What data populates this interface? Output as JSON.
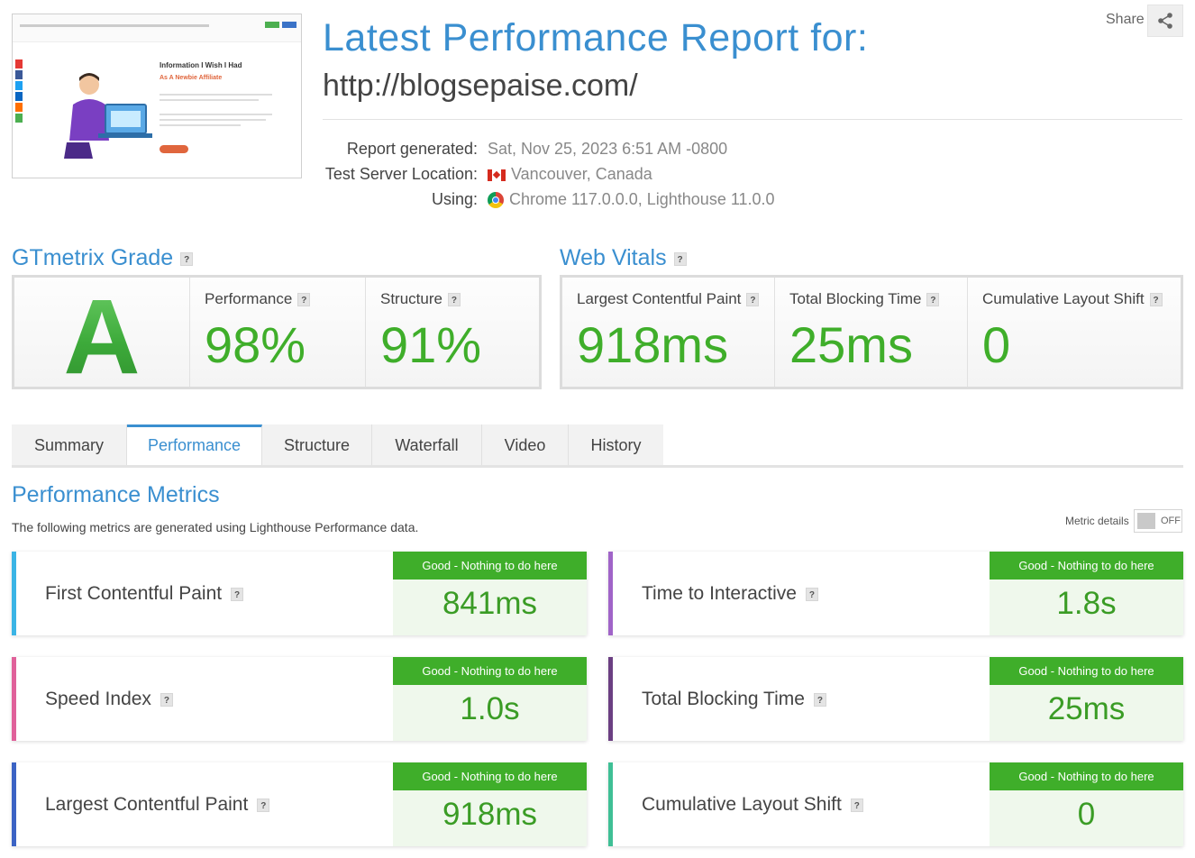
{
  "header": {
    "title": "Latest Performance Report for:",
    "url": "http://blogsepaise.com/",
    "share_label": "Share",
    "thumbnail": {
      "headline": "Information I Wish I Had",
      "subheadline": "As A Newbie Affiliate"
    },
    "meta": [
      {
        "label": "Report generated:",
        "value": "Sat, Nov 25, 2023 6:51 AM -0800",
        "icon": ""
      },
      {
        "label": "Test Server Location:",
        "value": "Vancouver, Canada",
        "icon": "canada-flag-icon"
      },
      {
        "label": "Using:",
        "value": "Chrome 117.0.0.0, Lighthouse 11.0.0",
        "icon": "chrome-icon"
      }
    ]
  },
  "grade": {
    "heading": "GTmetrix Grade",
    "letter": "A",
    "performance_label": "Performance",
    "performance_value": "98%",
    "structure_label": "Structure",
    "structure_value": "91%"
  },
  "vitals": {
    "heading": "Web Vitals",
    "items": [
      {
        "label": "Largest Contentful Paint",
        "value": "918ms"
      },
      {
        "label": "Total Blocking Time",
        "value": "25ms"
      },
      {
        "label": "Cumulative Layout Shift",
        "value": "0"
      }
    ]
  },
  "tabs": [
    {
      "label": "Summary",
      "active": false
    },
    {
      "label": "Performance",
      "active": true
    },
    {
      "label": "Structure",
      "active": false
    },
    {
      "label": "Waterfall",
      "active": false
    },
    {
      "label": "Video",
      "active": false
    },
    {
      "label": "History",
      "active": false
    }
  ],
  "performance_metrics": {
    "title": "Performance Metrics",
    "description": "The following metrics are generated using Lighthouse Performance data.",
    "metric_details_label": "Metric details",
    "toggle_state": "OFF",
    "cards": [
      {
        "name": "First Contentful Paint",
        "rating": "Good - Nothing to do here",
        "value": "841ms",
        "accent": "#3ab4e5"
      },
      {
        "name": "Time to Interactive",
        "rating": "Good - Nothing to do here",
        "value": "1.8s",
        "accent": "#a064c8"
      },
      {
        "name": "Speed Index",
        "rating": "Good - Nothing to do here",
        "value": "1.0s",
        "accent": "#e0619a"
      },
      {
        "name": "Total Blocking Time",
        "rating": "Good - Nothing to do here",
        "value": "25ms",
        "accent": "#6b3f82"
      },
      {
        "name": "Largest Contentful Paint",
        "rating": "Good - Nothing to do here",
        "value": "918ms",
        "accent": "#3b63c4"
      },
      {
        "name": "Cumulative Layout Shift",
        "rating": "Good - Nothing to do here",
        "value": "0",
        "accent": "#3fbf95"
      }
    ]
  },
  "colors": {
    "brand_blue": "#3a8fd0",
    "good_green": "#3fae2a",
    "good_bg": "#eff8ec"
  }
}
